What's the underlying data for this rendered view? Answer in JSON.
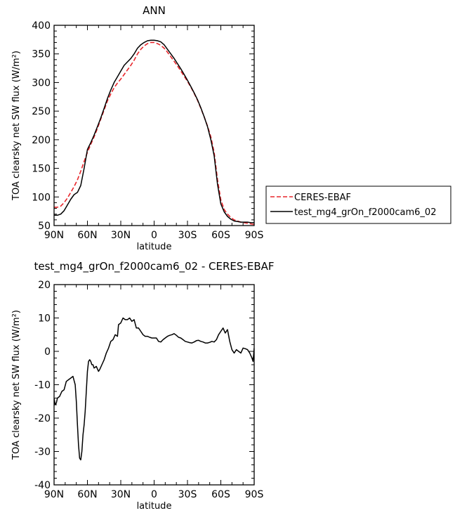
{
  "chart_data": [
    {
      "type": "line",
      "title": "ANN",
      "xlabel": "latitude",
      "ylabel": "TOA clearsky net SW flux (W/m²)",
      "xlim": [
        90,
        -90
      ],
      "ylim": [
        50,
        400
      ],
      "x_ticks": [
        90,
        60,
        30,
        0,
        -30,
        -60,
        -90
      ],
      "x_tick_labels": [
        "90N",
        "60N",
        "30N",
        "0",
        "30S",
        "60S",
        "90S"
      ],
      "y_ticks": [
        50,
        100,
        150,
        200,
        250,
        300,
        350,
        400
      ],
      "y_tick_labels": [
        "50",
        "100",
        "150",
        "200",
        "250",
        "300",
        "350",
        "400"
      ],
      "legend_position": "right",
      "series": [
        {
          "name": "CERES-EBAF",
          "color": "#e8262b",
          "dash": "dashed",
          "x": [
            90,
            87,
            84,
            81,
            78,
            75,
            72,
            69,
            66,
            63,
            60,
            57,
            54,
            51,
            48,
            45,
            42,
            39,
            36,
            33,
            30,
            27,
            24,
            21,
            18,
            15,
            12,
            9,
            6,
            3,
            0,
            -3,
            -6,
            -9,
            -12,
            -15,
            -18,
            -21,
            -24,
            -27,
            -30,
            -33,
            -36,
            -39,
            -42,
            -45,
            -48,
            -51,
            -54,
            -57,
            -60,
            -63,
            -66,
            -69,
            -72,
            -75,
            -78,
            -81,
            -84,
            -87,
            -90
          ],
          "values": [
            82,
            82,
            84,
            90,
            98,
            108,
            118,
            130,
            145,
            162,
            178,
            192,
            205,
            220,
            236,
            252,
            268,
            280,
            291,
            299,
            306,
            314,
            322,
            330,
            339,
            350,
            358,
            364,
            368,
            370,
            370,
            368,
            365,
            360,
            353,
            345,
            337,
            329,
            320,
            311,
            302,
            292,
            281,
            269,
            255,
            240,
            224,
            205,
            178,
            130,
            95,
            78,
            70,
            64,
            60,
            58,
            56,
            55,
            54,
            53,
            52
          ]
        },
        {
          "name": "test_mg4_grOn_f2000cam6_02",
          "color": "#000000",
          "dash": "solid",
          "x": [
            90,
            87,
            84,
            81,
            78,
            75,
            72,
            69,
            66,
            63,
            60,
            57,
            54,
            51,
            48,
            45,
            42,
            39,
            36,
            33,
            30,
            27,
            24,
            21,
            18,
            15,
            12,
            9,
            6,
            3,
            0,
            -3,
            -6,
            -9,
            -12,
            -15,
            -18,
            -21,
            -24,
            -27,
            -30,
            -33,
            -36,
            -39,
            -42,
            -45,
            -48,
            -51,
            -54,
            -57,
            -60,
            -63,
            -66,
            -69,
            -72,
            -75,
            -78,
            -81,
            -84,
            -87,
            -90
          ],
          "values": [
            68,
            68,
            70,
            76,
            86,
            96,
            104,
            108,
            120,
            150,
            183,
            195,
            208,
            223,
            238,
            255,
            272,
            287,
            300,
            310,
            320,
            330,
            336,
            342,
            350,
            360,
            366,
            370,
            373,
            374,
            374,
            373,
            371,
            366,
            358,
            350,
            342,
            333,
            324,
            314,
            304,
            293,
            282,
            270,
            256,
            240,
            223,
            200,
            172,
            122,
            88,
            74,
            66,
            61,
            58,
            57,
            56,
            56,
            56,
            55,
            55
          ]
        }
      ]
    },
    {
      "type": "line",
      "title": "test_mg4_grOn_f2000cam6_02 - CERES-EBAF",
      "xlabel": "latitude",
      "ylabel": "TOA clearsky net SW flux (W/m²)",
      "xlim": [
        90,
        -90
      ],
      "ylim": [
        -40,
        20
      ],
      "x_ticks": [
        90,
        60,
        30,
        0,
        -30,
        -60,
        -90
      ],
      "x_tick_labels": [
        "90N",
        "60N",
        "30N",
        "0",
        "30S",
        "60S",
        "90S"
      ],
      "y_ticks": [
        -40,
        -30,
        -20,
        -10,
        0,
        10,
        20
      ],
      "y_tick_labels": [
        "-40",
        "-30",
        "-20",
        "-10",
        "0",
        "10",
        "20"
      ],
      "series": [
        {
          "color": "#000000",
          "dash": "solid",
          "x": [
            90,
            89,
            88,
            87,
            85,
            83,
            81,
            79,
            77,
            75,
            73,
            71,
            70,
            69,
            68,
            67,
            66,
            65,
            64,
            63,
            62,
            61,
            60,
            59,
            58,
            57,
            56,
            55,
            54,
            52,
            50,
            49,
            47,
            45,
            43,
            41,
            39,
            37,
            35,
            33,
            32,
            30,
            28,
            26,
            24,
            22,
            20,
            18,
            16,
            14,
            12,
            10,
            8,
            6,
            4,
            2,
            0,
            -2,
            -4,
            -6,
            -8,
            -10,
            -12,
            -14,
            -16,
            -18,
            -20,
            -22,
            -24,
            -26,
            -28,
            -30,
            -32,
            -34,
            -36,
            -38,
            -40,
            -42,
            -44,
            -46,
            -48,
            -50,
            -52,
            -54,
            -56,
            -58,
            -60,
            -62,
            -64,
            -66,
            -68,
            -70,
            -72,
            -74,
            -76,
            -78,
            -80,
            -82,
            -84,
            -86,
            -88,
            -89,
            -90
          ],
          "values": [
            -14,
            -16,
            -15.5,
            -14,
            -13.5,
            -12,
            -11.5,
            -9,
            -8.5,
            -8,
            -7.5,
            -10,
            -15,
            -22,
            -28,
            -32,
            -32.5,
            -30,
            -25,
            -22,
            -18,
            -12,
            -6,
            -3,
            -2.5,
            -3,
            -4,
            -4,
            -5,
            -4.5,
            -6,
            -5.5,
            -4,
            -2.5,
            -0.5,
            1,
            3,
            3.5,
            5,
            4.5,
            8,
            8.5,
            10,
            9.5,
            9.5,
            10,
            9,
            9.5,
            7,
            7,
            6,
            5,
            4.5,
            4.5,
            4.2,
            4,
            4,
            4,
            3,
            2.8,
            3.5,
            4,
            4.5,
            4.8,
            5,
            5.3,
            4.8,
            4.2,
            4,
            3.5,
            3,
            2.8,
            2.6,
            2.5,
            2.8,
            3.2,
            3.3,
            3,
            2.8,
            2.5,
            2.5,
            2.7,
            3,
            2.8,
            3.5,
            5,
            6,
            7,
            5.5,
            6.5,
            3,
            0.5,
            -0.5,
            0.5,
            0,
            -0.5,
            1,
            0.8,
            0.5,
            -0.5,
            -2,
            -3,
            1
          ]
        }
      ]
    }
  ]
}
